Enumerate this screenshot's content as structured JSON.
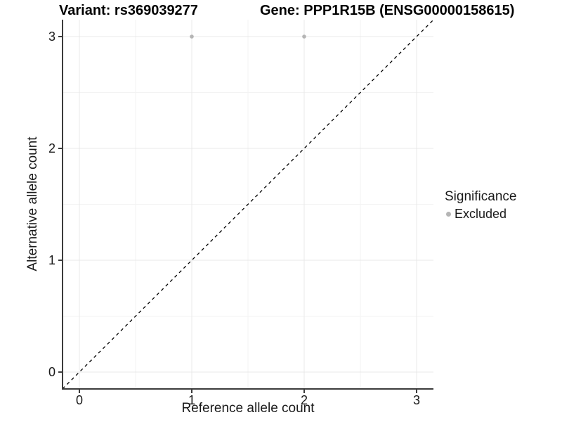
{
  "titles": {
    "variant": "Variant: rs369039277",
    "gene": "Gene: PPP1R15B (ENSG00000158615)"
  },
  "axes": {
    "x_title": "Reference allele count",
    "y_title": "Alternative allele count"
  },
  "legend": {
    "title": "Significance",
    "items": [
      {
        "label": "Excluded",
        "color": "#b5b5b5"
      }
    ]
  },
  "colors": {
    "background": "#ffffff",
    "grid_major": "#e8e8e8",
    "grid_minor": "#f3f3f3",
    "axis_line": "#3c3c3c",
    "tick_label": "#1a1a1a",
    "point": "#b5b5b5",
    "reference_line": "#000000"
  },
  "chart_data": {
    "type": "scatter",
    "title_left": "Variant: rs369039277",
    "title_right": "Gene: PPP1R15B (ENSG00000158615)",
    "xlabel": "Reference allele count",
    "ylabel": "Alternative allele count",
    "xlim": [
      -0.15,
      3.15
    ],
    "ylim": [
      -0.15,
      3.15
    ],
    "xticks": [
      0,
      1,
      2,
      3
    ],
    "yticks": [
      0,
      1,
      2,
      3
    ],
    "x_minor": [
      0.5,
      1.5,
      2.5
    ],
    "y_minor": [
      0.5,
      1.5,
      2.5
    ],
    "grid": "on",
    "legend_position": "right",
    "series": [
      {
        "name": "Excluded",
        "color": "#b5b5b5",
        "points": [
          {
            "x": 1,
            "y": 3
          },
          {
            "x": 2,
            "y": 3
          }
        ]
      }
    ],
    "reference_line": {
      "kind": "identity y=x",
      "style": "dashed",
      "from": [
        -0.15,
        -0.15
      ],
      "to": [
        3.15,
        3.15
      ]
    }
  }
}
